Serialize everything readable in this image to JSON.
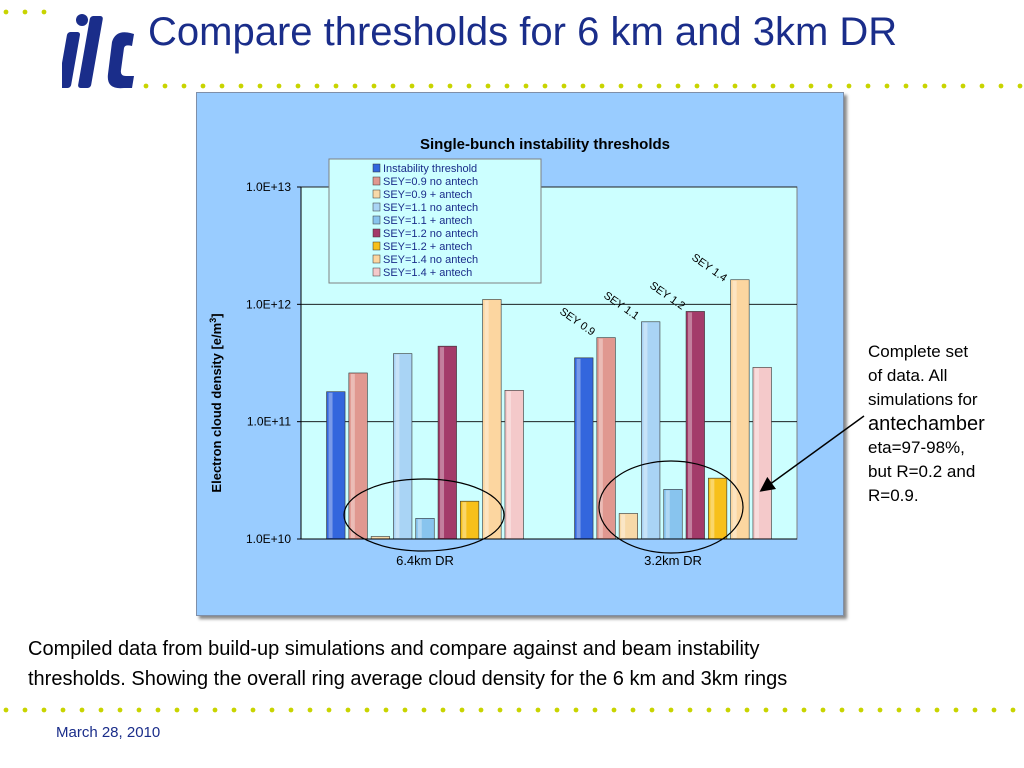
{
  "slide": {
    "title": "Compare thresholds for 6 km and 3km DR",
    "logo_text": "ilc",
    "side_note": {
      "line1": "Complete set",
      "line2": "of data. All",
      "line3": "simulations for",
      "line4": "antechamber",
      "line5": "eta=97-98%,",
      "line6": "but R=0.2 and",
      "line7": "R=0.9."
    },
    "caption_line1": "Compiled data from build-up simulations and compare against and beam instability",
    "caption_line2": "thresholds. Showing the overall ring average cloud density for the 6 km and 3km rings",
    "date": "March 28, 2010",
    "colors": {
      "title": "#1a2d8a",
      "dots": "#c8d400",
      "panel": "#99ccff",
      "plot_area": "#ccffff"
    }
  },
  "chart_data": {
    "type": "bar",
    "title": "Single-bunch instability thresholds",
    "ylabel_main": "Electron cloud density  [e/m",
    "ylabel_sup": "3",
    "ylabel_end": "]",
    "yscale": "log",
    "ylim": [
      10000000000,
      10000000000000
    ],
    "yticks": [
      {
        "value": 10000000000,
        "label": "1.0E+10"
      },
      {
        "value": 100000000000,
        "label": "1.0E+11"
      },
      {
        "value": 1000000000000,
        "label": "1.0E+12"
      },
      {
        "value": 10000000000000,
        "label": "1.0E+13"
      }
    ],
    "grid": true,
    "legend_position": "top",
    "categories": [
      "6.4km DR",
      "3.2km DR"
    ],
    "series": [
      {
        "name": "Instability threshold",
        "color": "#3366dd",
        "values": [
          180000000000,
          350000000000
        ]
      },
      {
        "name": "SEY=0.9 no antech",
        "color": "#e09890",
        "values": [
          260000000000,
          520000000000
        ]
      },
      {
        "name": "SEY=0.9 + antech",
        "color": "#f7d9a8",
        "values": [
          10500000000,
          16500000000
        ]
      },
      {
        "name": "SEY=1.1 no antech",
        "color": "#a9d4f5",
        "values": [
          380000000000,
          710000000000
        ]
      },
      {
        "name": "SEY=1.1 + antech",
        "color": "#88c4ee",
        "values": [
          15000000000,
          26500000000
        ]
      },
      {
        "name": "SEY=1.2 no antech",
        "color": "#a33b6a",
        "values": [
          440000000000,
          870000000000
        ]
      },
      {
        "name": "SEY=1.2 + antech",
        "color": "#f7c01a",
        "values": [
          21000000000,
          33000000000
        ]
      },
      {
        "name": "SEY=1.4 no antech",
        "color": "#fcd6a0",
        "values": [
          1100000000000,
          1620000000000
        ]
      },
      {
        "name": "SEY=1.4 + antech",
        "color": "#f4c9ca",
        "values": [
          185000000000,
          290000000000
        ]
      }
    ],
    "annotations": [
      "SEY 0.9",
      "SEY 1.1",
      "SEY 1.2",
      "SEY 1.4"
    ]
  }
}
